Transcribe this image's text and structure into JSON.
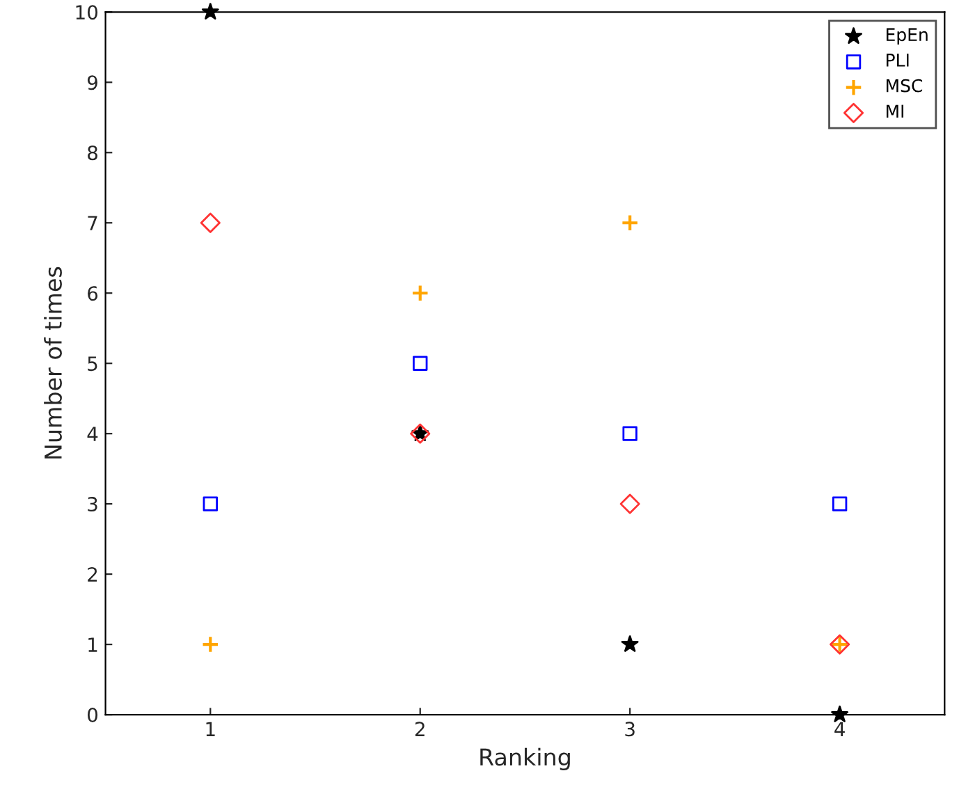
{
  "chart_data": {
    "type": "scatter",
    "xlabel": "Ranking",
    "ylabel": "Number of times",
    "x": [
      1,
      2,
      3,
      4
    ],
    "series": [
      {
        "name": "EpEn",
        "color": "#000000",
        "marker": "star",
        "values": [
          10,
          4,
          1,
          0
        ]
      },
      {
        "name": "PLI",
        "color": "#0000ff",
        "marker": "square",
        "values": [
          3,
          5,
          4,
          3
        ]
      },
      {
        "name": "MSC",
        "color": "#ffa500",
        "marker": "cross",
        "values": [
          1,
          6,
          7,
          1
        ]
      },
      {
        "name": "MI",
        "color": "#ff3333",
        "marker": "diamond",
        "values": [
          7,
          4,
          3,
          1
        ]
      }
    ],
    "xlim": [
      0.5,
      4.5
    ],
    "xticks": [
      1,
      2,
      3,
      4
    ],
    "ylim": [
      0,
      10
    ],
    "yticks": [
      0,
      1,
      2,
      3,
      4,
      5,
      6,
      7,
      8,
      9,
      10
    ],
    "grid": false,
    "legend": "top right"
  }
}
